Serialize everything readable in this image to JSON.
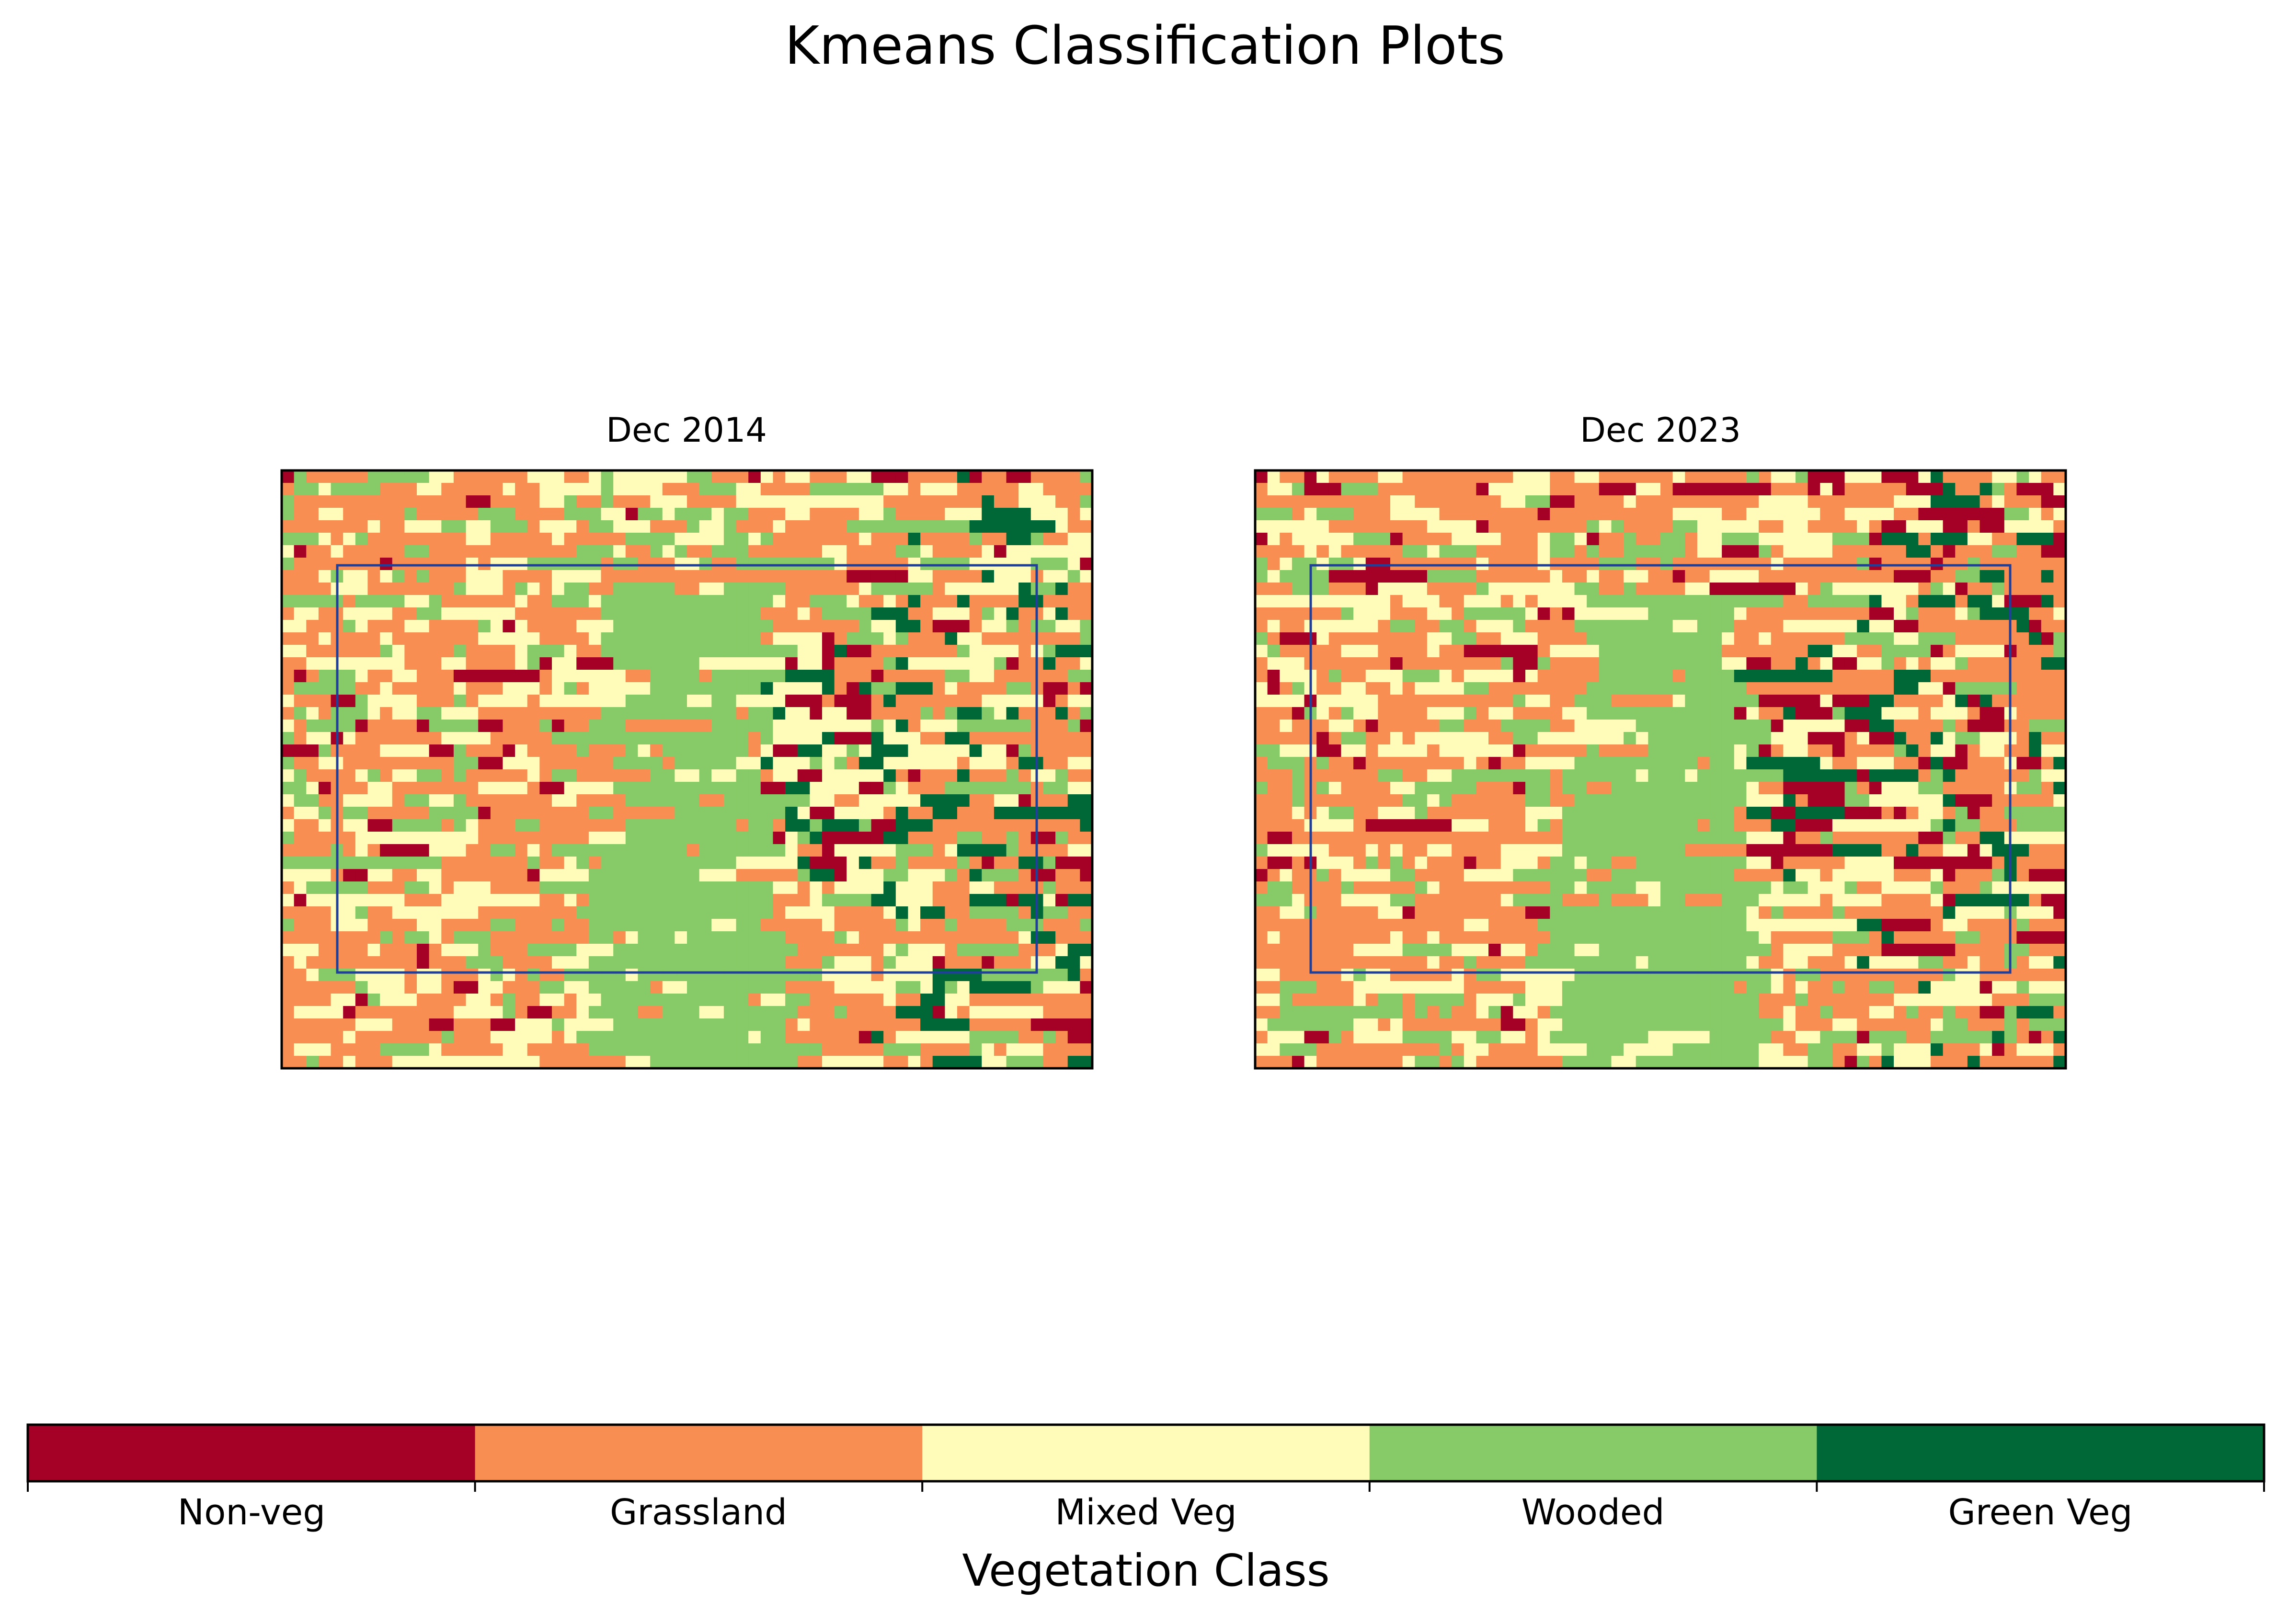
{
  "figure": {
    "title": "Kmeans Classification Plots"
  },
  "chart_data": {
    "type": "heatmap",
    "panels": [
      {
        "title": "Dec 2014",
        "rows": 48,
        "cols": 66,
        "seed": 2014,
        "has_box": true
      },
      {
        "title": "Dec 2023",
        "rows": 48,
        "cols": 66,
        "seed": 2023,
        "has_box": true
      }
    ],
    "colorbar": {
      "label": "Vegetation Class",
      "orientation": "horizontal",
      "classes": [
        {
          "name": "Non-veg",
          "color": "#a50026"
        },
        {
          "name": "Grassland",
          "color": "#f98e52"
        },
        {
          "name": "Mixed Veg",
          "color": "#fffbb8"
        },
        {
          "name": "Wooded",
          "color": "#86cb67"
        },
        {
          "name": "Green Veg",
          "color": "#006837"
        }
      ]
    },
    "box_color": "#1f3f99"
  }
}
